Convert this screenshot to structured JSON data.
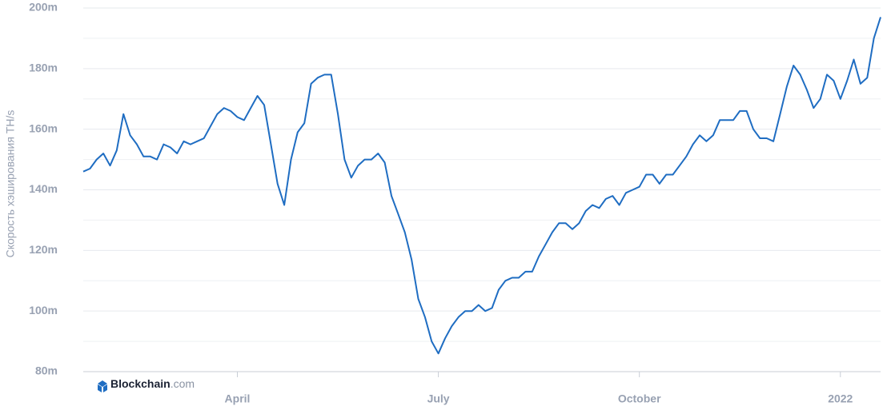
{
  "chart_data": {
    "type": "line",
    "y_axis_label": "Скорость хэширования TH/s",
    "brand": "Blockchain",
    "brand_domain": ".com",
    "categories": [
      null,
      null,
      null,
      null,
      null,
      null,
      null,
      null,
      null,
      null,
      null,
      null,
      null,
      null,
      null,
      null,
      null,
      null,
      null,
      null,
      null,
      null,
      null,
      "April",
      null,
      null,
      null,
      null,
      null,
      null,
      null,
      null,
      null,
      null,
      null,
      null,
      null,
      null,
      null,
      null,
      null,
      null,
      null,
      null,
      null,
      null,
      null,
      null,
      null,
      null,
      null,
      null,
      null,
      "July",
      null,
      null,
      null,
      null,
      null,
      null,
      null,
      null,
      null,
      null,
      null,
      null,
      null,
      null,
      null,
      null,
      null,
      null,
      null,
      null,
      null,
      null,
      null,
      null,
      null,
      null,
      null,
      null,
      null,
      "October",
      null,
      null,
      null,
      null,
      null,
      null,
      null,
      null,
      null,
      null,
      null,
      null,
      null,
      null,
      null,
      null,
      null,
      null,
      null,
      null,
      null,
      null,
      null,
      null,
      null,
      null,
      null,
      null,
      null,
      "2022",
      null,
      null,
      null,
      null,
      null,
      null
    ],
    "series": [
      {
        "color": "#1f6dc2",
        "values": [
          146000000,
          147000000,
          150000000,
          152000000,
          148000000,
          153000000,
          165000000,
          158000000,
          155000000,
          151000000,
          151000000,
          150000000,
          155000000,
          154000000,
          152000000,
          156000000,
          155000000,
          156000000,
          157000000,
          161000000,
          165000000,
          167000000,
          166000000,
          164000000,
          163000000,
          167000000,
          171000000,
          168000000,
          155000000,
          142000000,
          135000000,
          150000000,
          159000000,
          162000000,
          175000000,
          177000000,
          178000000,
          178000000,
          165000000,
          150000000,
          144000000,
          148000000,
          150000000,
          150000000,
          152000000,
          149000000,
          138000000,
          132000000,
          126000000,
          117000000,
          104000000,
          98000000,
          90000000,
          86000000,
          91000000,
          95000000,
          98000000,
          100000000,
          100000000,
          102000000,
          100000000,
          101000000,
          107000000,
          110000000,
          111000000,
          111000000,
          113000000,
          113000000,
          118000000,
          122000000,
          126000000,
          129000000,
          129000000,
          127000000,
          129000000,
          133000000,
          135000000,
          134000000,
          137000000,
          138000000,
          135000000,
          139000000,
          140000000,
          141000000,
          145000000,
          145000000,
          142000000,
          145000000,
          145000000,
          148000000,
          151000000,
          155000000,
          158000000,
          156000000,
          158000000,
          163000000,
          163000000,
          163000000,
          166000000,
          166000000,
          160000000,
          157000000,
          157000000,
          156000000,
          165000000,
          174000000,
          181000000,
          178000000,
          173000000,
          167000000,
          170000000,
          178000000,
          176000000,
          170000000,
          176000000,
          183000000,
          175000000,
          177000000,
          190000000,
          197000000
        ]
      }
    ],
    "ylim": [
      80000000,
      200000000
    ],
    "yticks": [
      {
        "value": 80000000,
        "label": "80m"
      },
      {
        "value": 100000000,
        "label": "100m"
      },
      {
        "value": 120000000,
        "label": "120m"
      },
      {
        "value": 140000000,
        "label": "140m"
      },
      {
        "value": 160000000,
        "label": "160m"
      },
      {
        "value": 180000000,
        "label": "180m"
      },
      {
        "value": 200000000,
        "label": "200m"
      }
    ],
    "minor_yticks": [
      90000000,
      110000000,
      130000000,
      150000000,
      170000000,
      190000000
    ],
    "grid": true
  }
}
